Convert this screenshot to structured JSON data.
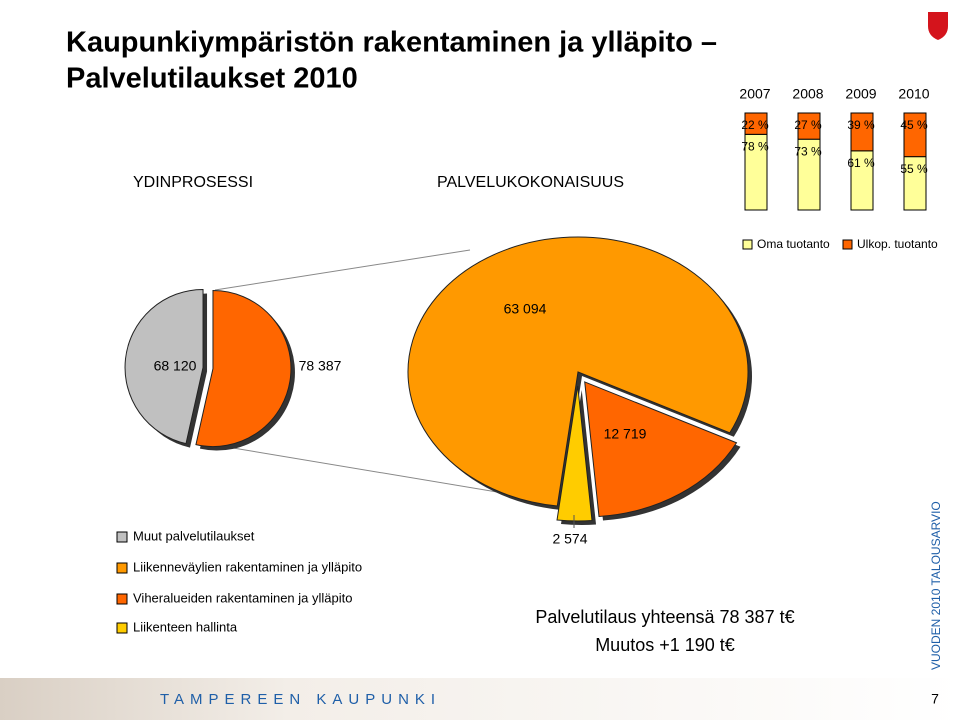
{
  "header": {
    "title_lines": [
      "Kaupunkiympäristön rakentaminen ja ylläpito –",
      "Palvelutilaukset 2010"
    ]
  },
  "section_labels": [
    "YDINPROSESSI",
    "PALVELUKOKONAISUUS"
  ],
  "summary_lines": [
    "Palvelutilaus yhteensä 78 387 t€",
    "Muutos +1 190 t€"
  ],
  "footer": {
    "organization": "TAMPEREEN KAUPUNKI",
    "side_label": "VUODEN 2010 TALOUSARVIO",
    "page_number": 7
  },
  "chart_data": [
    {
      "type": "bar",
      "stacked": true,
      "categories": [
        "2007",
        "2008",
        "2009",
        "2010"
      ],
      "series": [
        {
          "name": "Oma tuotanto",
          "color": "#ffff99",
          "values": [
            78,
            73,
            61,
            55
          ],
          "value_labels": [
            "78 %",
            "73 %",
            "61 %",
            "55 %"
          ]
        },
        {
          "name": "Ulkop. tuotanto",
          "color": "#ff6600",
          "values": [
            22,
            27,
            39,
            45
          ],
          "value_labels": [
            "22 %",
            "27 %",
            "39 %",
            "45 %"
          ]
        }
      ],
      "ylim": [
        0,
        100
      ],
      "legend": "bottom"
    },
    {
      "type": "pie",
      "categories": [
        "Muut palvelutilaukset",
        null
      ],
      "values": [
        68120,
        78387
      ],
      "value_labels": [
        "68 120",
        "78 387"
      ],
      "colors": [
        "#c0c0c0",
        "#ff6600"
      ]
    },
    {
      "type": "pie",
      "categories": [
        "Liikenneväylien rakentaminen ja ylläpito",
        "Viheralueiden rakentaminen ja ylläpito",
        "Liikenteen hallinta"
      ],
      "values": [
        63094,
        12719,
        2574
      ],
      "value_labels": [
        "63 094",
        "12 719",
        "2 574"
      ],
      "colors": [
        "#ff9900",
        "#ff6600",
        "#ffcc00"
      ]
    }
  ]
}
